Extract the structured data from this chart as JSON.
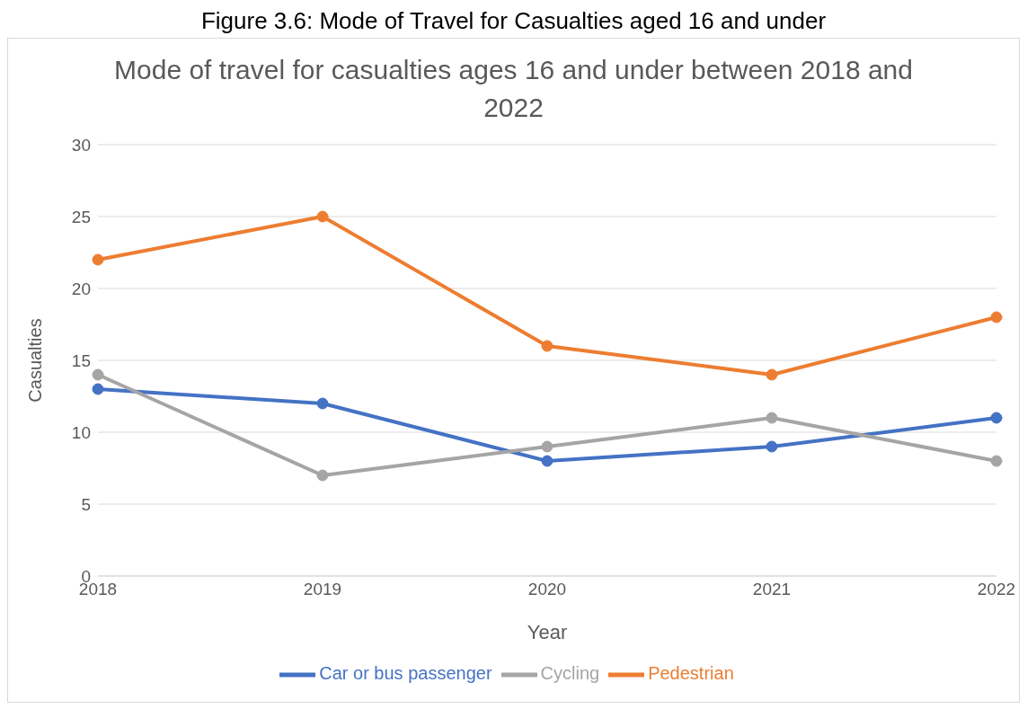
{
  "chart_data": {
    "type": "line",
    "title": "Mode of travel for casualties ages 16 and under between 2018 and 2022",
    "annotations": [
      "Figure 3.6: Mode of Travel for Casualties aged 16 and under"
    ],
    "xlabel": "Year",
    "ylabel": "Casualties",
    "categories": [
      "2018",
      "2019",
      "2020",
      "2021",
      "2022"
    ],
    "series": [
      {
        "name": "Car or bus passenger",
        "color": "#4472c4",
        "values": [
          13,
          12,
          8,
          9,
          11
        ]
      },
      {
        "name": "Pedestrian",
        "color": "#ed7d31",
        "values": [
          22,
          25,
          16,
          14,
          18
        ]
      },
      {
        "name": "Cycling",
        "color": "#a5a5a5",
        "values": [
          14,
          7,
          9,
          11,
          8
        ]
      }
    ],
    "ylim": [
      0,
      30
    ],
    "yticks": [
      0,
      5,
      10,
      15,
      20,
      25,
      30
    ],
    "grid": "y",
    "legend": "bottom",
    "marker": "circle",
    "line_style": "solid"
  }
}
